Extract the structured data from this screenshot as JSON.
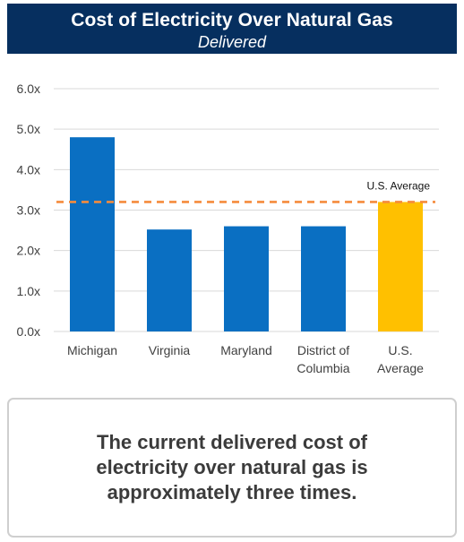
{
  "header": {
    "title": "Cost of Electricity Over Natural Gas",
    "subtitle": "Delivered"
  },
  "note": {
    "text": "The current delivered cost of electricity over natural gas is approximately three times."
  },
  "chart_data": {
    "type": "bar",
    "title": "Cost of Electricity Over Natural Gas",
    "subtitle": "Delivered",
    "categories": [
      [
        "Michigan"
      ],
      [
        "Virginia"
      ],
      [
        "Maryland"
      ],
      [
        "District of",
        "Columbia"
      ],
      [
        "U.S.",
        "Average"
      ]
    ],
    "values": [
      4.8,
      2.52,
      2.6,
      2.6,
      3.2
    ],
    "bar_colors": [
      "#0a6fc2",
      "#0a6fc2",
      "#0a6fc2",
      "#0a6fc2",
      "#ffc000"
    ],
    "ylim": [
      0,
      6
    ],
    "yticks": [
      "0.0x",
      "1.0x",
      "2.0x",
      "3.0x",
      "4.0x",
      "5.0x",
      "6.0x"
    ],
    "grid": true,
    "reference_line": {
      "value": 3.2,
      "label": "U.S. Average",
      "color": "#f58b3c",
      "style": "dashed"
    },
    "xlabel": "",
    "ylabel": ""
  }
}
